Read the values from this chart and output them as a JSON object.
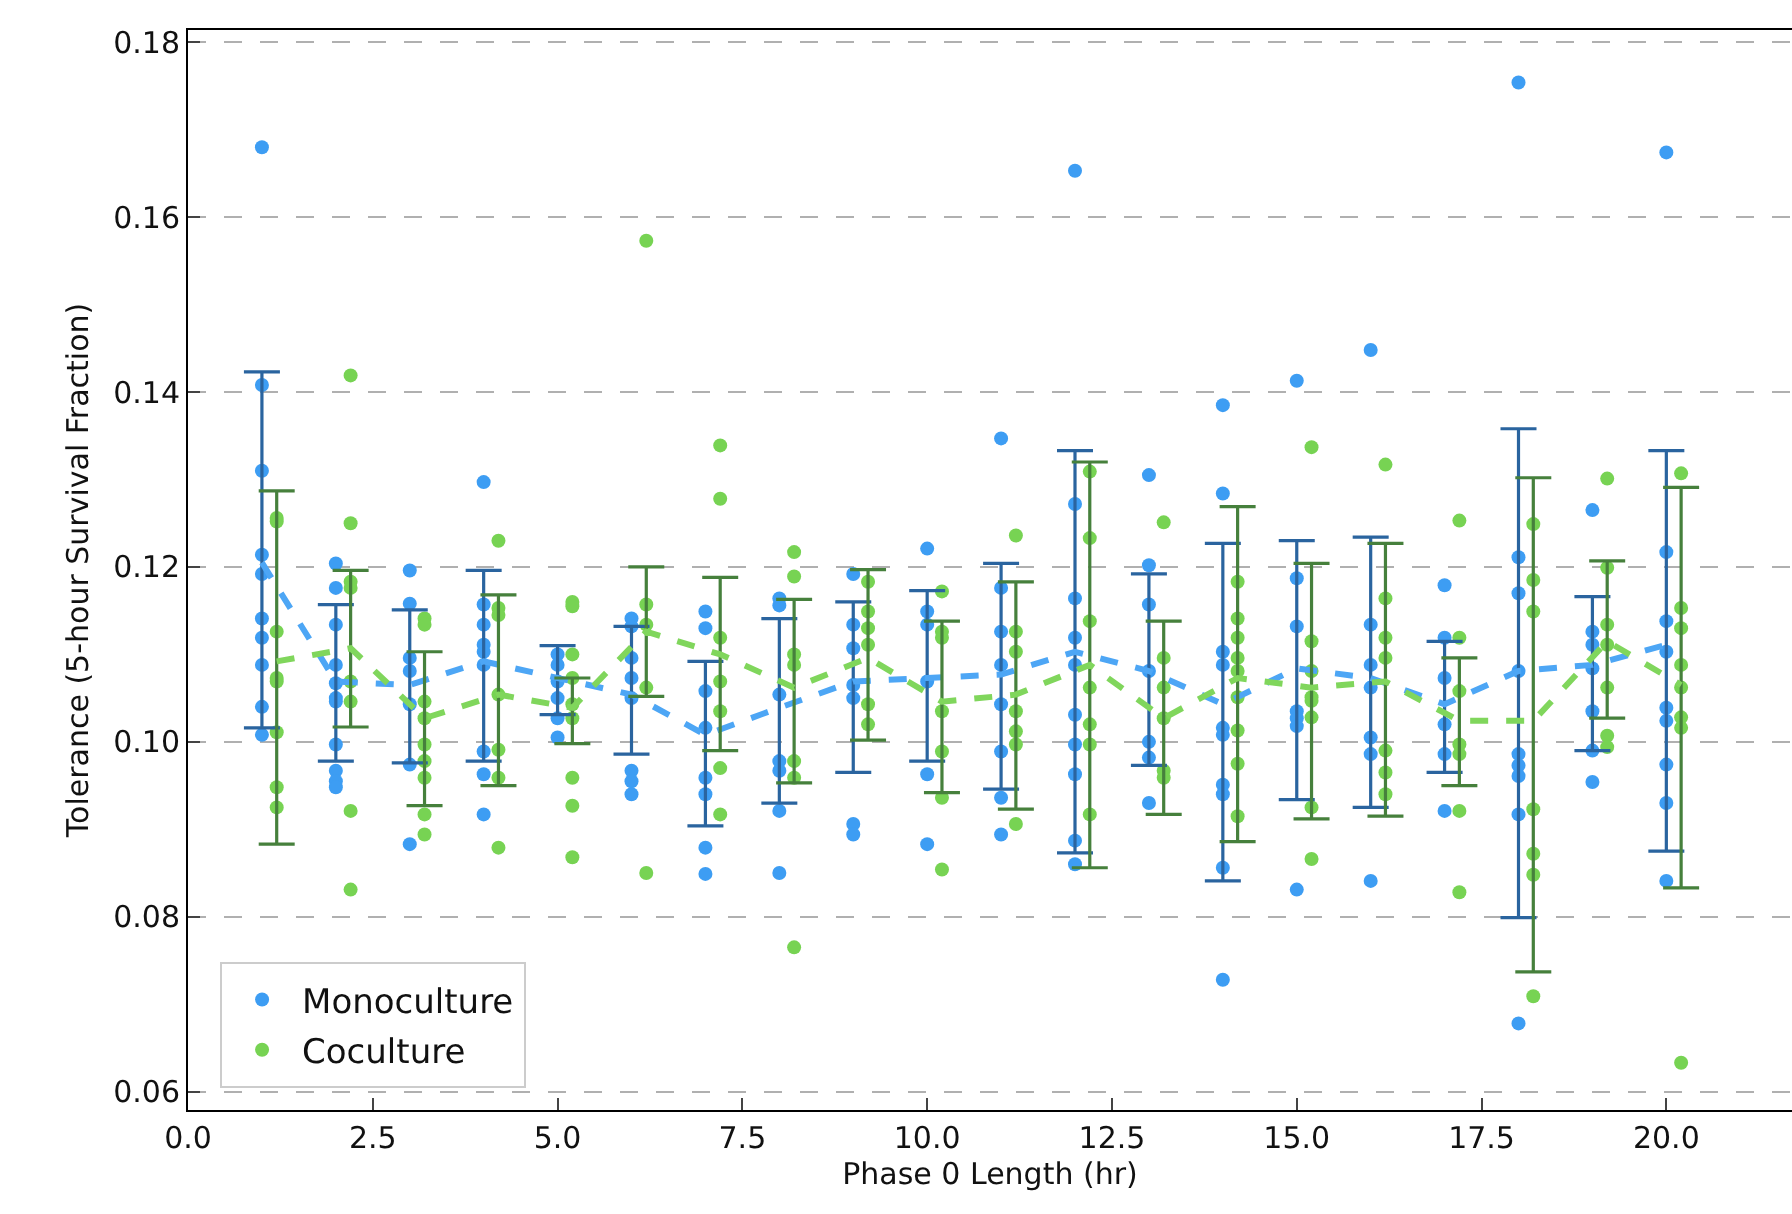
{
  "chart_data": {
    "type": "scatter",
    "xlabel": "Phase 0 Length (hr)",
    "ylabel": "Tolerance (5-hour Survival Fraction)",
    "xlim": [
      0,
      21.7
    ],
    "ylim": [
      0.0579,
      0.1814
    ],
    "xticks": [
      {
        "value": 0,
        "label": "0.0"
      },
      {
        "value": 2.5,
        "label": "2.5"
      },
      {
        "value": 5,
        "label": "5.0"
      },
      {
        "value": 7.5,
        "label": "7.5"
      },
      {
        "value": 10,
        "label": "10.0"
      },
      {
        "value": 12.5,
        "label": "12.5"
      },
      {
        "value": 15,
        "label": "15.0"
      },
      {
        "value": 17.5,
        "label": "17.5"
      },
      {
        "value": 20,
        "label": "20.0"
      }
    ],
    "yticks": [
      0.06,
      0.08,
      {
        "value": 0.1,
        "label": "0.10"
      },
      0.12,
      0.14,
      0.16,
      0.18
    ],
    "grid": "y",
    "legend": "bottom left",
    "marker": "circle",
    "series": [
      {
        "name": "Monoculture",
        "color": "#3d9df3",
        "x": [
          1,
          1,
          1,
          1,
          1,
          1,
          1,
          1,
          1,
          1,
          2,
          2,
          2,
          2,
          2,
          2,
          2,
          2,
          2,
          2,
          2,
          3,
          3,
          3,
          3,
          3,
          3,
          3,
          4,
          4,
          4,
          4,
          4,
          4,
          4,
          4,
          4,
          5,
          5,
          5,
          5,
          5,
          5,
          6,
          6,
          6,
          6,
          6,
          6,
          6,
          6,
          7,
          7,
          7,
          7,
          7,
          7,
          7,
          7,
          8,
          8,
          8,
          8,
          8,
          8,
          8,
          9,
          9,
          9,
          9,
          9,
          9,
          9,
          10,
          10,
          10,
          10,
          10,
          10,
          11,
          11,
          11,
          11,
          11,
          11,
          11,
          11,
          12,
          12,
          12,
          12,
          12,
          12,
          12,
          12,
          12,
          12,
          13,
          13,
          13,
          13,
          13,
          13,
          13,
          14,
          14,
          14,
          14,
          14,
          14,
          14,
          14,
          14,
          14,
          15,
          15,
          15,
          15,
          15,
          15,
          15,
          16,
          16,
          16,
          16,
          16,
          16,
          16,
          17,
          17,
          17,
          17,
          17,
          17,
          18,
          18,
          18,
          18,
          18,
          18,
          18,
          18,
          18,
          19,
          19,
          19,
          19,
          19,
          19,
          19,
          20,
          20,
          20,
          20,
          20,
          20,
          20,
          20,
          20
        ],
        "values": [
          0.1408,
          0.131,
          0.1214,
          0.1192,
          0.1141,
          0.1119,
          0.1088,
          0.104,
          0.1008,
          0.168,
          0.1204,
          0.1176,
          0.1134,
          0.1088,
          0.1067,
          0.105,
          0.1046,
          0.0997,
          0.0967,
          0.0955,
          0.0948,
          0.1196,
          0.1158,
          0.1096,
          0.1081,
          0.1043,
          0.0974,
          0.0883,
          0.1297,
          0.1157,
          0.1134,
          0.1111,
          0.1103,
          0.1088,
          0.0989,
          0.0963,
          0.0917,
          0.11,
          0.1088,
          0.1069,
          0.105,
          0.1027,
          0.1005,
          0.1141,
          0.1132,
          0.1096,
          0.1073,
          0.105,
          0.0967,
          0.0955,
          0.094,
          0.1149,
          0.113,
          0.1058,
          0.1016,
          0.0959,
          0.094,
          0.0879,
          0.0849,
          0.1164,
          0.1156,
          0.1054,
          0.0978,
          0.0967,
          0.0921,
          0.085,
          0.1192,
          0.1134,
          0.1107,
          0.1065,
          0.105,
          0.0906,
          0.0894,
          0.1221,
          0.1149,
          0.1134,
          0.1069,
          0.0963,
          0.0883,
          0.1347,
          0.1176,
          0.1126,
          0.1088,
          0.1043,
          0.0989,
          0.0936,
          0.0894,
          0.1653,
          0.1272,
          0.1164,
          0.1119,
          0.1088,
          0.1031,
          0.0997,
          0.0963,
          0.0887,
          0.086,
          0.1305,
          0.1202,
          0.1157,
          0.1081,
          0.1,
          0.0982,
          0.093,
          0.1385,
          0.1284,
          0.1103,
          0.1088,
          0.1016,
          0.1008,
          0.0951,
          0.094,
          0.0856,
          0.0728,
          0.1413,
          0.1187,
          0.1132,
          0.1035,
          0.1027,
          0.1018,
          0.0831,
          0.1448,
          0.1134,
          0.1088,
          0.1062,
          0.1005,
          0.0986,
          0.0841,
          0.1179,
          0.1119,
          0.1073,
          0.102,
          0.0986,
          0.0921,
          0.1754,
          0.1211,
          0.117,
          0.1081,
          0.0986,
          0.0973,
          0.0961,
          0.0917,
          0.0678,
          0.1265,
          0.1126,
          0.1111,
          0.1084,
          0.1035,
          0.099,
          0.0954,
          0.1674,
          0.1217,
          0.1138,
          0.1103,
          0.1039,
          0.1024,
          0.0974,
          0.093,
          0.0841
        ]
      },
      {
        "name": "Coculture",
        "color": "#77d353",
        "x": [
          1.2,
          1.2,
          1.2,
          1.2,
          1.2,
          1.2,
          1.2,
          1.2,
          2.2,
          2.2,
          2.2,
          2.2,
          2.2,
          2.2,
          2.2,
          2.2,
          3.2,
          3.2,
          3.2,
          3.2,
          3.2,
          3.2,
          3.2,
          3.2,
          3.2,
          4.2,
          4.2,
          4.2,
          4.2,
          4.2,
          4.2,
          4.2,
          5.2,
          5.2,
          5.2,
          5.2,
          5.2,
          5.2,
          5.2,
          5.2,
          5.2,
          6.2,
          6.2,
          6.2,
          6.2,
          6.2,
          7.2,
          7.2,
          7.2,
          7.2,
          7.2,
          7.2,
          7.2,
          8.2,
          8.2,
          8.2,
          8.2,
          8.2,
          8.2,
          8.2,
          9.2,
          9.2,
          9.2,
          9.2,
          9.2,
          9.2,
          10.2,
          10.2,
          10.2,
          10.2,
          10.2,
          10.2,
          10.2,
          11.2,
          11.2,
          11.2,
          11.2,
          11.2,
          11.2,
          11.2,
          12.2,
          12.2,
          12.2,
          12.2,
          12.2,
          12.2,
          12.2,
          13.2,
          13.2,
          13.2,
          13.2,
          13.2,
          13.2,
          14.2,
          14.2,
          14.2,
          14.2,
          14.2,
          14.2,
          14.2,
          14.2,
          14.2,
          15.2,
          15.2,
          15.2,
          15.2,
          15.2,
          15.2,
          15.2,
          15.2,
          16.2,
          16.2,
          16.2,
          16.2,
          16.2,
          16.2,
          16.2,
          17.2,
          17.2,
          17.2,
          17.2,
          17.2,
          17.2,
          17.2,
          18.2,
          18.2,
          18.2,
          18.2,
          18.2,
          18.2,
          18.2,
          19.2,
          19.2,
          19.2,
          19.2,
          19.2,
          19.2,
          19.2,
          20.2,
          20.2,
          20.2,
          20.2,
          20.2,
          20.2,
          20.2,
          20.2
        ],
        "values": [
          0.1256,
          0.1252,
          0.1126,
          0.1073,
          0.1069,
          0.1011,
          0.0948,
          0.0925,
          0.1419,
          0.125,
          0.1183,
          0.1176,
          0.1069,
          0.1046,
          0.0921,
          0.0831,
          0.1141,
          0.1134,
          0.1046,
          0.1027,
          0.0997,
          0.0978,
          0.0959,
          0.0917,
          0.0894,
          0.123,
          0.1153,
          0.1145,
          0.1054,
          0.0991,
          0.0959,
          0.0879,
          0.116,
          0.1155,
          0.11,
          0.1073,
          0.1043,
          0.1027,
          0.0959,
          0.0927,
          0.0868,
          0.1573,
          0.1157,
          0.1134,
          0.1062,
          0.085,
          0.1339,
          0.1278,
          0.1119,
          0.1069,
          0.1035,
          0.097,
          0.0917,
          0.1217,
          0.1189,
          0.11,
          0.1088,
          0.0978,
          0.0959,
          0.0765,
          0.1183,
          0.1149,
          0.113,
          0.1111,
          0.1043,
          0.102,
          0.1172,
          0.1126,
          0.1119,
          0.1035,
          0.0989,
          0.0936,
          0.0854,
          0.1236,
          0.1126,
          0.1103,
          0.1035,
          0.1012,
          0.0997,
          0.0906,
          0.1309,
          0.1233,
          0.1138,
          0.1062,
          0.102,
          0.0997,
          0.0917,
          0.1251,
          0.1096,
          0.1062,
          0.1027,
          0.0967,
          0.0959,
          0.1183,
          0.1141,
          0.1119,
          0.1096,
          0.1081,
          0.1051,
          0.1013,
          0.0975,
          0.0915,
          0.1337,
          0.1115,
          0.1081,
          0.1051,
          0.1047,
          0.1028,
          0.0925,
          0.0866,
          0.1317,
          0.1164,
          0.1119,
          0.1096,
          0.099,
          0.0965,
          0.094,
          0.1253,
          0.1119,
          0.1058,
          0.0997,
          0.0986,
          0.0921,
          0.0828,
          0.1249,
          0.1185,
          0.1149,
          0.0923,
          0.0872,
          0.0848,
          0.0709,
          0.1301,
          0.1199,
          0.1134,
          0.1111,
          0.1062,
          0.1007,
          0.0994,
          0.1307,
          0.1153,
          0.113,
          0.1088,
          0.1062,
          0.1028,
          0.1016,
          0.0633
        ]
      },
      {
        "type": "line",
        "line_style": "dashed",
        "marker": "none",
        "color": "#4da6f5",
        "x": [
          1,
          2,
          3,
          4,
          5,
          6,
          7,
          8,
          9,
          10,
          11,
          12,
          13,
          14,
          15,
          16,
          17,
          18,
          19,
          20
        ],
        "values": [
          0.1205,
          0.1069,
          0.1065,
          0.1092,
          0.1073,
          0.1054,
          0.1008,
          0.1039,
          0.1069,
          0.1073,
          0.1077,
          0.1103,
          0.1081,
          0.1043,
          0.1084,
          0.1073,
          0.1043,
          0.1081,
          0.1088,
          0.1111
        ],
        "errors": [
          [
            0.1016,
            0.1423
          ],
          [
            0.0978,
            0.1157
          ],
          [
            0.0976,
            0.1151
          ],
          [
            0.0978,
            0.1196
          ],
          [
            0.1031,
            0.111
          ],
          [
            0.0986,
            0.1132
          ],
          [
            0.0904,
            0.1092
          ],
          [
            0.093,
            0.1141
          ],
          [
            0.0965,
            0.116
          ],
          [
            0.0978,
            0.1173
          ],
          [
            0.0946,
            0.1204
          ],
          [
            0.0873,
            0.1333
          ],
          [
            0.0973,
            0.1192
          ],
          [
            0.0841,
            0.1227
          ],
          [
            0.0934,
            0.123
          ],
          [
            0.0925,
            0.1234
          ],
          [
            0.0965,
            0.1115
          ],
          [
            0.0799,
            0.1358
          ],
          [
            0.099,
            0.1166
          ],
          [
            0.0875,
            0.1333
          ]
        ]
      },
      {
        "type": "line",
        "line_style": "dashed",
        "marker": "none",
        "color": "#80d65c",
        "x": [
          1.2,
          2.2,
          3.2,
          4.2,
          5.2,
          6.2,
          7.2,
          8.2,
          9.2,
          10.2,
          11.2,
          12.2,
          13.2,
          14.2,
          15.2,
          16.2,
          17.2,
          18.2,
          19.2,
          20.2
        ],
        "values": [
          0.1092,
          0.1107,
          0.1027,
          0.1054,
          0.1039,
          0.1126,
          0.11,
          0.1062,
          0.1096,
          0.1046,
          0.1054,
          0.1088,
          0.1027,
          0.1073,
          0.1062,
          0.1069,
          0.1024,
          0.1024,
          0.1115,
          0.1065
        ],
        "errors": [
          [
            0.0883,
            0.1287
          ],
          [
            0.1017,
            0.1196
          ],
          [
            0.0927,
            0.1103
          ],
          [
            0.095,
            0.1168
          ],
          [
            0.0998,
            0.1073
          ],
          [
            0.1052,
            0.12
          ],
          [
            0.099,
            0.1188
          ],
          [
            0.0953,
            0.1163
          ],
          [
            0.1002,
            0.1197
          ],
          [
            0.0942,
            0.1138
          ],
          [
            0.0923,
            0.1183
          ],
          [
            0.0856,
            0.132
          ],
          [
            0.0917,
            0.1138
          ],
          [
            0.0886,
            0.1269
          ],
          [
            0.0912,
            0.1204
          ],
          [
            0.0915,
            0.1227
          ],
          [
            0.095,
            0.1096
          ],
          [
            0.0737,
            0.1302
          ],
          [
            0.1027,
            0.1207
          ],
          [
            0.0833,
            0.1291
          ]
        ]
      }
    ]
  }
}
